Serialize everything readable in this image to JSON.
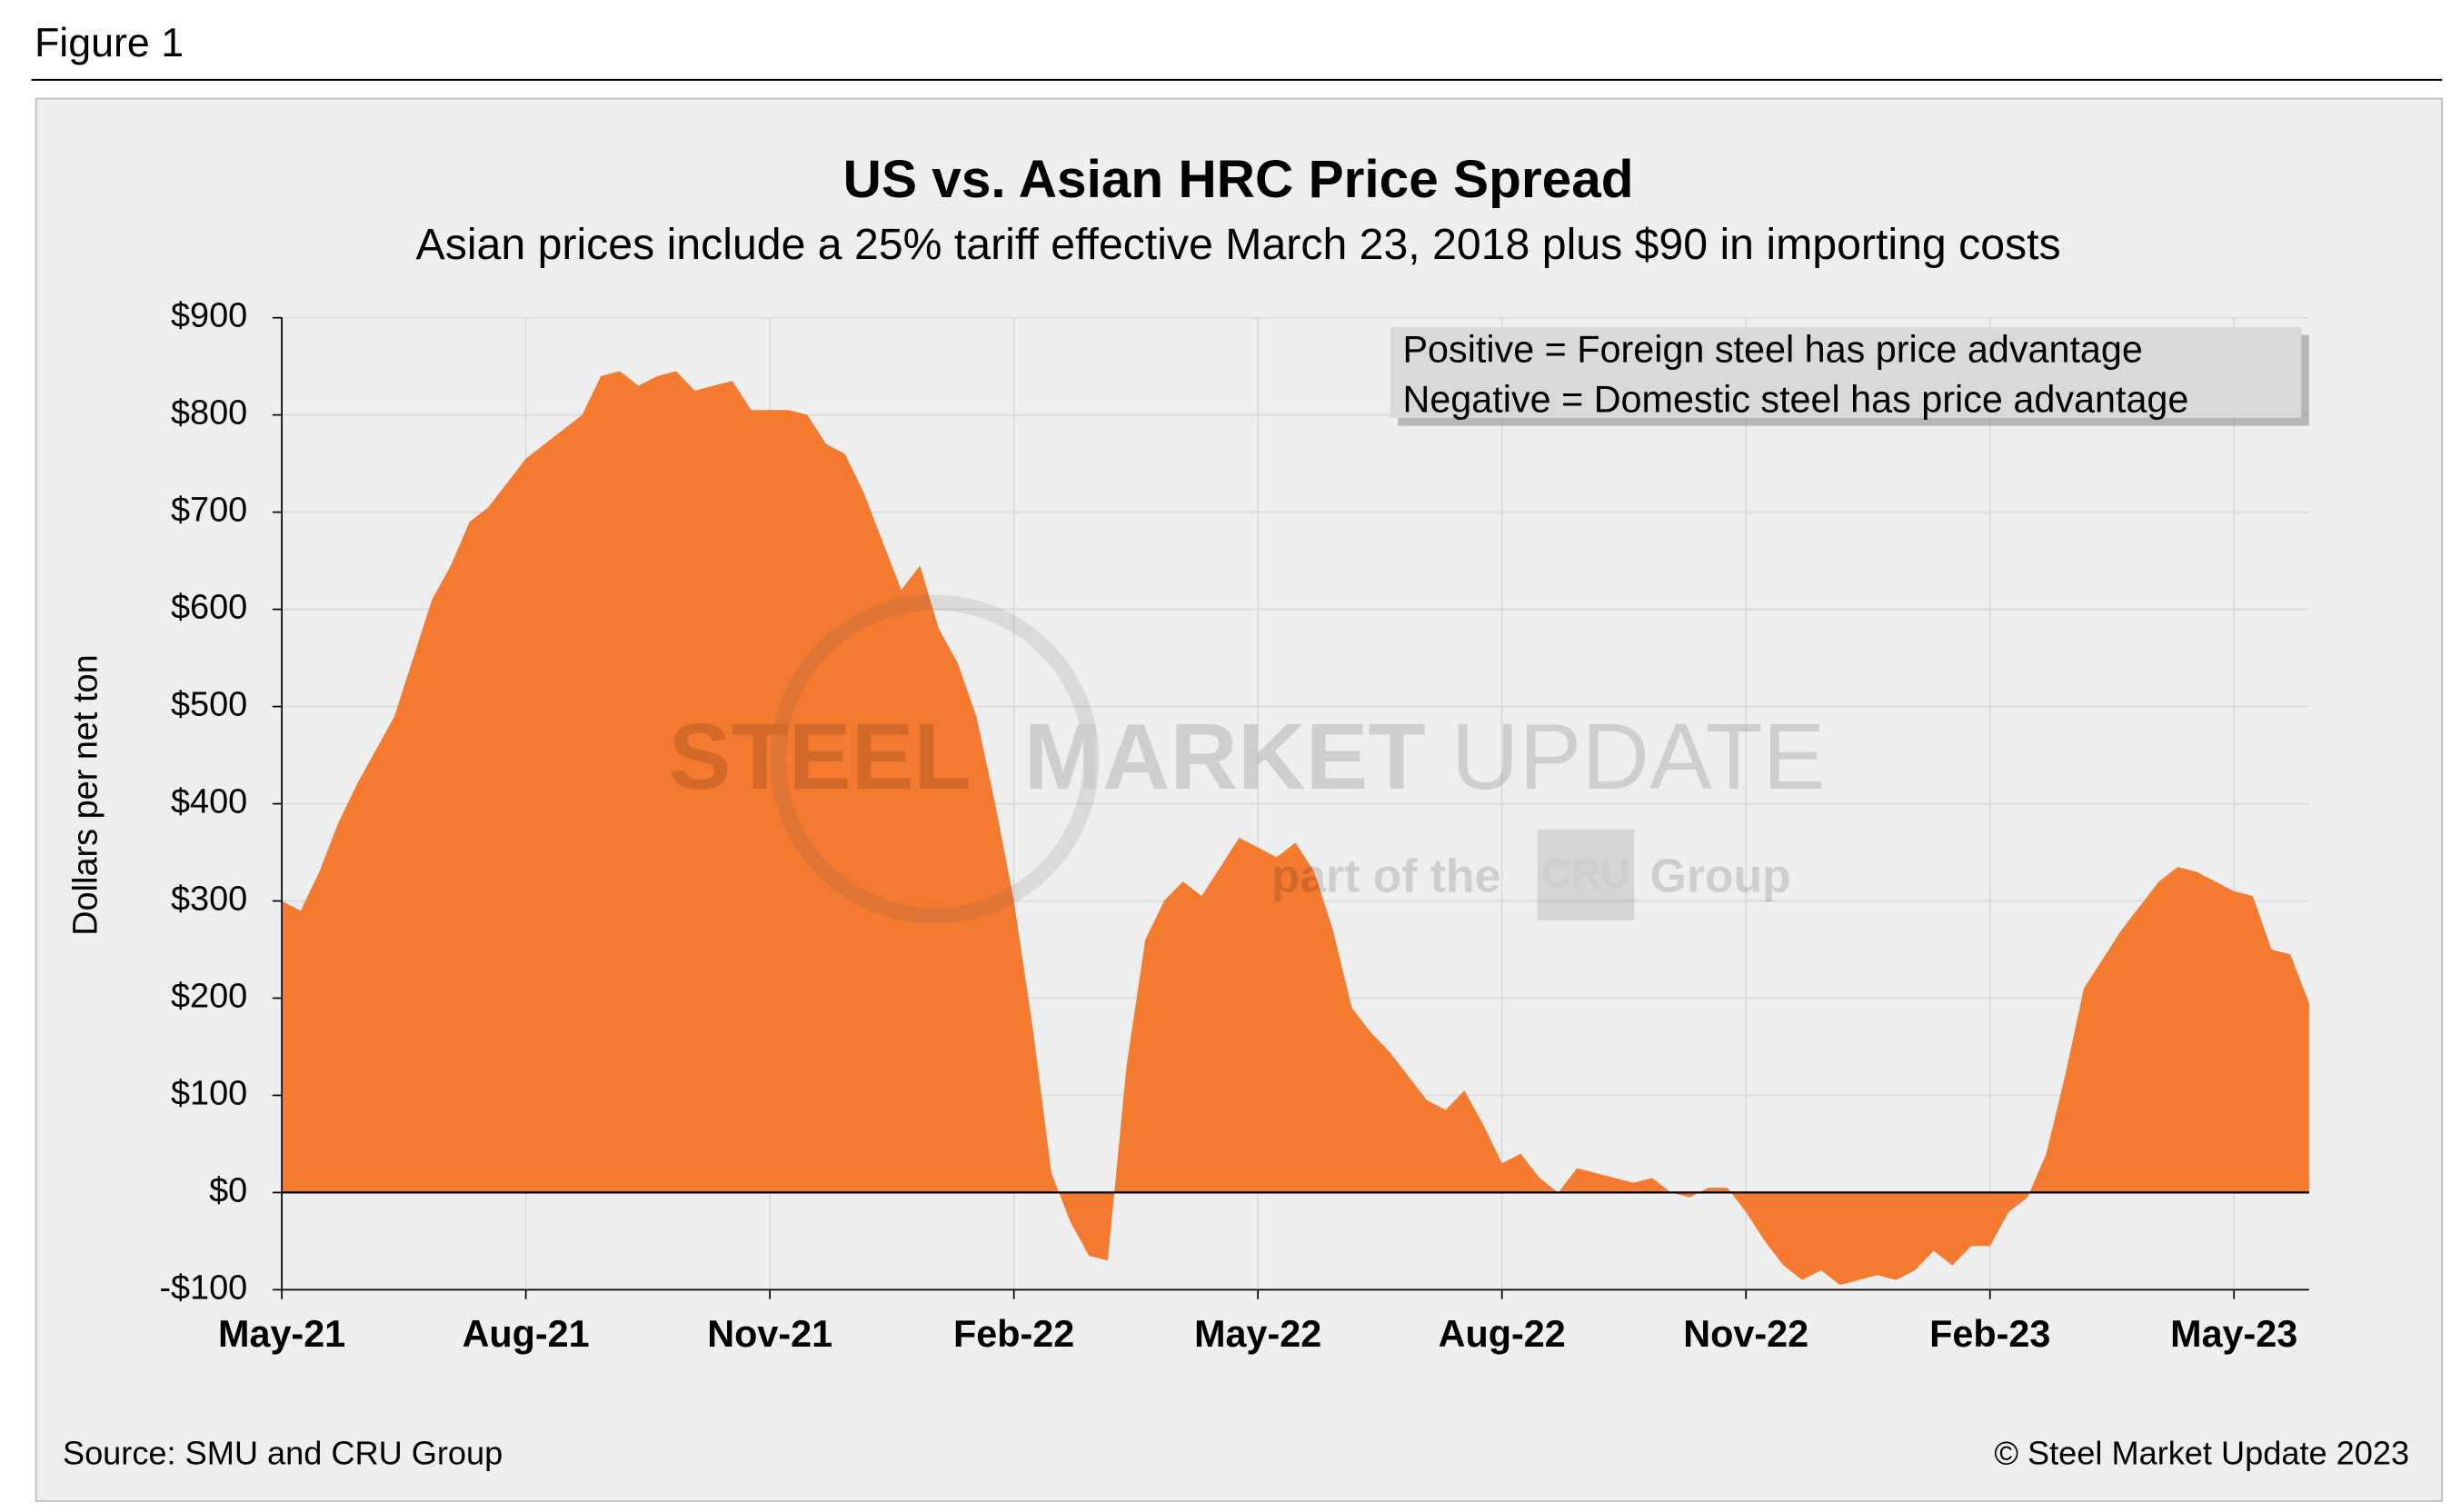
{
  "figure_label": "Figure 1",
  "source": "Source: SMU and CRU Group",
  "copyright": "© Steel Market Update 2023",
  "watermark": {
    "brand": "STEEL",
    "brand2": "MARKET",
    "brand3": "UPDATE",
    "tagline": "part of the",
    "logo": "CRU",
    "group": "Group"
  },
  "chart_data": {
    "type": "area",
    "title": "US vs. Asian HRC Price Spread",
    "subtitle": "Asian prices include a 25% tariff effective March 23, 2018 plus $90 in importing costs",
    "y_label": "Dollars per net ton",
    "annotations": [
      "Positive = Foreign steel has price advantage",
      "Negative = Domestic steel has price advantage"
    ],
    "color": "#f47a30",
    "grid": true,
    "categories": [
      "May-21",
      null,
      null,
      null,
      null,
      null,
      null,
      null,
      null,
      null,
      null,
      null,
      null,
      "Aug-21",
      null,
      null,
      null,
      null,
      null,
      null,
      null,
      null,
      null,
      null,
      null,
      null,
      "Nov-21",
      null,
      null,
      null,
      null,
      null,
      null,
      null,
      null,
      null,
      null,
      null,
      null,
      "Feb-22",
      null,
      null,
      null,
      null,
      null,
      null,
      null,
      null,
      null,
      null,
      null,
      null,
      "May-22",
      null,
      null,
      null,
      null,
      null,
      null,
      null,
      null,
      null,
      null,
      null,
      null,
      "Aug-22",
      null,
      null,
      null,
      null,
      null,
      null,
      null,
      null,
      null,
      null,
      null,
      null,
      "Nov-22",
      null,
      null,
      null,
      null,
      null,
      null,
      null,
      null,
      null,
      null,
      null,
      null,
      "Feb-23",
      null,
      null,
      null,
      null,
      null,
      null,
      null,
      null,
      null,
      null,
      null,
      null,
      "May-23",
      null,
      null,
      null,
      null
    ],
    "values": [
      300,
      290,
      330,
      380,
      420,
      455,
      490,
      550,
      610,
      645,
      690,
      705,
      730,
      755,
      770,
      785,
      800,
      840,
      845,
      830,
      840,
      845,
      825,
      830,
      835,
      805,
      805,
      805,
      800,
      770,
      760,
      720,
      670,
      620,
      645,
      580,
      545,
      490,
      400,
      300,
      170,
      20,
      -30,
      -65,
      -70,
      130,
      260,
      300,
      320,
      305,
      335,
      365,
      355,
      345,
      360,
      330,
      270,
      190,
      165,
      145,
      120,
      95,
      85,
      105,
      70,
      30,
      40,
      15,
      0,
      25,
      20,
      15,
      10,
      15,
      0,
      -5,
      5,
      5,
      -20,
      -50,
      -75,
      -90,
      -80,
      -95,
      -90,
      -85,
      -90,
      -80,
      -60,
      -75,
      -55,
      -55,
      -20,
      -5,
      40,
      120,
      210,
      240,
      270,
      295,
      320,
      335,
      330,
      320,
      310,
      305,
      250,
      245,
      195
    ],
    "ylim": [
      -100,
      900
    ],
    "yticks": [
      {
        "value": -100,
        "label": "-$100"
      },
      {
        "value": 0,
        "label": "$0"
      },
      {
        "value": 100,
        "label": "$100"
      },
      {
        "value": 200,
        "label": "$200"
      },
      {
        "value": 300,
        "label": "$300"
      },
      {
        "value": 400,
        "label": "$400"
      },
      {
        "value": 500,
        "label": "$500"
      },
      {
        "value": 600,
        "label": "$600"
      },
      {
        "value": 700,
        "label": "$700"
      },
      {
        "value": 800,
        "label": "$800"
      },
      {
        "value": 900,
        "label": "$900"
      }
    ]
  }
}
